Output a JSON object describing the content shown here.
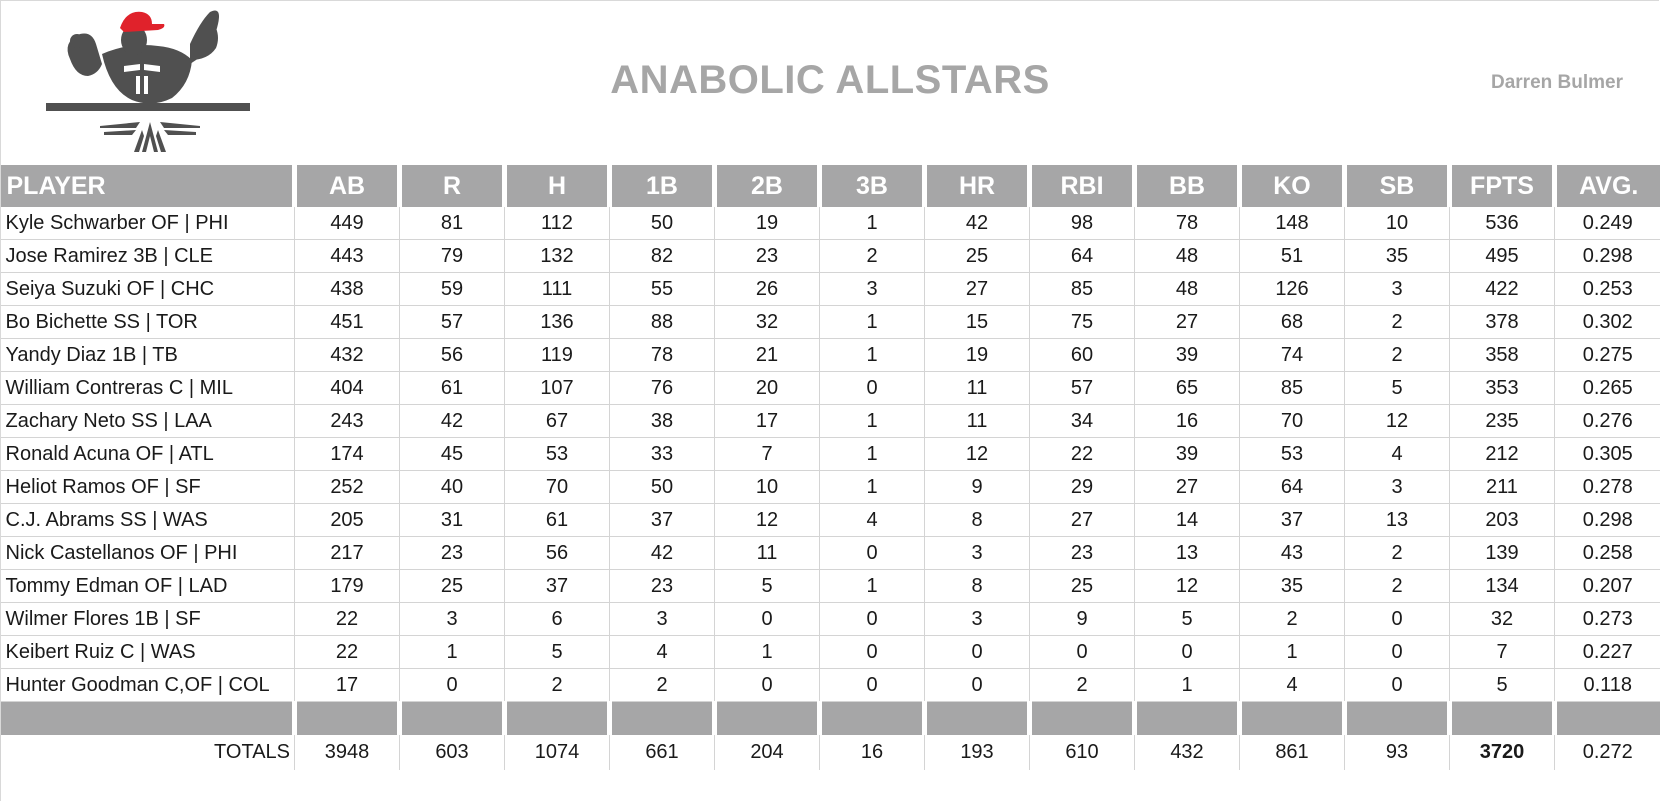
{
  "header": {
    "team_name": "ANABOLIC ALLSTARS",
    "owner": "Darren Bulmer"
  },
  "colors": {
    "header_gray": "#a6a6a7",
    "title_gray": "#a6a6a6",
    "logo_red": "#e0222b",
    "logo_dark": "#505050"
  },
  "table": {
    "columns": [
      "PLAYER",
      "AB",
      "R",
      "H",
      "1B",
      "2B",
      "3B",
      "HR",
      "RBI",
      "BB",
      "KO",
      "SB",
      "FPTS",
      "AVG."
    ],
    "rows": [
      [
        "Kyle Schwarber OF | PHI",
        "449",
        "81",
        "112",
        "50",
        "19",
        "1",
        "42",
        "98",
        "78",
        "148",
        "10",
        "536",
        "0.249"
      ],
      [
        "Jose Ramirez 3B | CLE",
        "443",
        "79",
        "132",
        "82",
        "23",
        "2",
        "25",
        "64",
        "48",
        "51",
        "35",
        "495",
        "0.298"
      ],
      [
        "Seiya Suzuki OF | CHC",
        "438",
        "59",
        "111",
        "55",
        "26",
        "3",
        "27",
        "85",
        "48",
        "126",
        "3",
        "422",
        "0.253"
      ],
      [
        "Bo Bichette SS | TOR",
        "451",
        "57",
        "136",
        "88",
        "32",
        "1",
        "15",
        "75",
        "27",
        "68",
        "2",
        "378",
        "0.302"
      ],
      [
        "Yandy Diaz 1B | TB",
        "432",
        "56",
        "119",
        "78",
        "21",
        "1",
        "19",
        "60",
        "39",
        "74",
        "2",
        "358",
        "0.275"
      ],
      [
        "William Contreras C | MIL",
        "404",
        "61",
        "107",
        "76",
        "20",
        "0",
        "11",
        "57",
        "65",
        "85",
        "5",
        "353",
        "0.265"
      ],
      [
        "Zachary Neto SS | LAA",
        "243",
        "42",
        "67",
        "38",
        "17",
        "1",
        "11",
        "34",
        "16",
        "70",
        "12",
        "235",
        "0.276"
      ],
      [
        "Ronald Acuna OF | ATL",
        "174",
        "45",
        "53",
        "33",
        "7",
        "1",
        "12",
        "22",
        "39",
        "53",
        "4",
        "212",
        "0.305"
      ],
      [
        "Heliot Ramos OF | SF",
        "252",
        "40",
        "70",
        "50",
        "10",
        "1",
        "9",
        "29",
        "27",
        "64",
        "3",
        "211",
        "0.278"
      ],
      [
        "C.J. Abrams SS | WAS",
        "205",
        "31",
        "61",
        "37",
        "12",
        "4",
        "8",
        "27",
        "14",
        "37",
        "13",
        "203",
        "0.298"
      ],
      [
        "Nick Castellanos OF | PHI",
        "217",
        "23",
        "56",
        "42",
        "11",
        "0",
        "3",
        "23",
        "13",
        "43",
        "2",
        "139",
        "0.258"
      ],
      [
        "Tommy Edman OF | LAD",
        "179",
        "25",
        "37",
        "23",
        "5",
        "1",
        "8",
        "25",
        "12",
        "35",
        "2",
        "134",
        "0.207"
      ],
      [
        "Wilmer Flores 1B | SF",
        "22",
        "3",
        "6",
        "3",
        "0",
        "0",
        "3",
        "9",
        "5",
        "2",
        "0",
        "32",
        "0.273"
      ],
      [
        "Keibert Ruiz C | WAS",
        "22",
        "1",
        "5",
        "4",
        "1",
        "0",
        "0",
        "0",
        "0",
        "1",
        "0",
        "7",
        "0.227"
      ],
      [
        "Hunter Goodman C,OF | COL",
        "17",
        "0",
        "2",
        "2",
        "0",
        "0",
        "0",
        "2",
        "1",
        "4",
        "0",
        "5",
        "0.118"
      ]
    ],
    "totals": [
      "TOTALS",
      "3948",
      "603",
      "1074",
      "661",
      "204",
      "16",
      "193",
      "610",
      "432",
      "861",
      "93",
      "3720",
      "0.272"
    ]
  }
}
